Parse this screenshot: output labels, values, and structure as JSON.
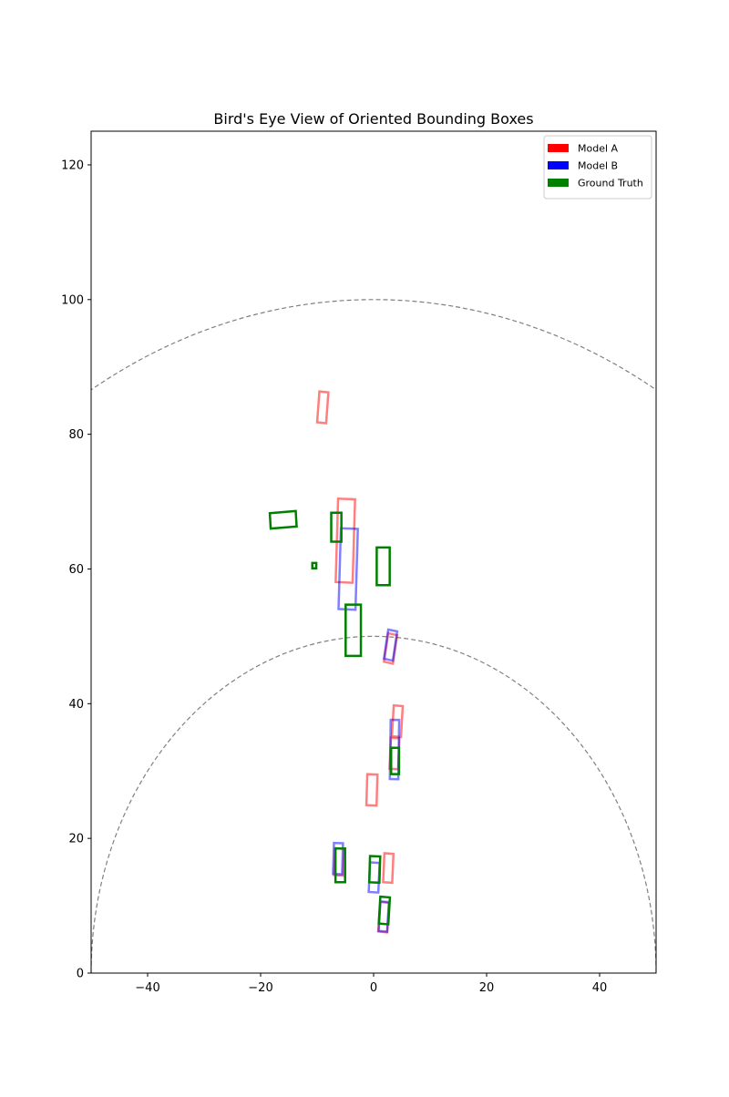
{
  "chart_data": {
    "type": "scatter",
    "title": "Bird's Eye View of Oriented Bounding Boxes",
    "xlabel": "",
    "ylabel": "",
    "xlim": [
      -50,
      50
    ],
    "ylim": [
      0,
      125
    ],
    "x_ticks": [
      -40,
      -20,
      0,
      20,
      40
    ],
    "y_ticks": [
      0,
      20,
      40,
      60,
      80,
      100,
      120
    ],
    "grid": false,
    "legend_position": "upper right",
    "range_rings": [
      {
        "radius": 50,
        "style": "dashed",
        "color": "#808080"
      },
      {
        "radius": 100,
        "style": "dashed",
        "color": "#808080"
      }
    ],
    "series": [
      {
        "name": "Model A",
        "color": "#ff0000",
        "alpha": 0.5,
        "boxes": [
          {
            "cx": -9.0,
            "cy": 84.0,
            "w": 1.6,
            "l": 4.6,
            "heading_deg": 5
          },
          {
            "cx": -5.0,
            "cy": 64.2,
            "w": 3.0,
            "l": 12.4,
            "heading_deg": 2
          },
          {
            "cx": 3.0,
            "cy": 48.2,
            "w": 1.6,
            "l": 4.3,
            "heading_deg": 10
          },
          {
            "cx": 4.2,
            "cy": 37.4,
            "w": 1.6,
            "l": 4.6,
            "heading_deg": 4
          },
          {
            "cx": 3.7,
            "cy": 32.6,
            "w": 1.5,
            "l": 4.6,
            "heading_deg": 3
          },
          {
            "cx": -0.3,
            "cy": 27.2,
            "w": 1.8,
            "l": 4.6,
            "heading_deg": 2
          },
          {
            "cx": 2.6,
            "cy": 15.6,
            "w": 1.6,
            "l": 4.3,
            "heading_deg": 3
          },
          {
            "cx": -6.1,
            "cy": 16.5,
            "w": 1.6,
            "l": 4.0,
            "heading_deg": 3
          },
          {
            "cx": 1.8,
            "cy": 8.3,
            "w": 1.6,
            "l": 4.4,
            "heading_deg": 5
          }
        ]
      },
      {
        "name": "Model B",
        "color": "#0000ff",
        "alpha": 0.5,
        "boxes": [
          {
            "cx": -4.5,
            "cy": 60.0,
            "w": 3.0,
            "l": 12.0,
            "heading_deg": 2
          },
          {
            "cx": 3.0,
            "cy": 48.7,
            "w": 1.6,
            "l": 4.4,
            "heading_deg": 10
          },
          {
            "cx": 3.7,
            "cy": 33.2,
            "w": 1.5,
            "l": 8.8,
            "heading_deg": 1
          },
          {
            "cx": -6.3,
            "cy": 17.0,
            "w": 1.6,
            "l": 4.6,
            "heading_deg": 2
          },
          {
            "cx": 0.1,
            "cy": 14.2,
            "w": 1.7,
            "l": 4.4,
            "heading_deg": 3
          },
          {
            "cx": 1.8,
            "cy": 8.4,
            "w": 1.5,
            "l": 4.4,
            "heading_deg": 4
          }
        ]
      },
      {
        "name": "Ground Truth",
        "color": "#008000",
        "alpha": 1.0,
        "boxes": [
          {
            "cx": -16.0,
            "cy": 67.3,
            "w": 2.3,
            "l": 4.6,
            "heading_deg": 86
          },
          {
            "cx": -6.6,
            "cy": 66.2,
            "w": 1.8,
            "l": 4.3,
            "heading_deg": 0
          },
          {
            "cx": -10.5,
            "cy": 60.5,
            "w": 0.7,
            "l": 0.8,
            "heading_deg": 0
          },
          {
            "cx": 1.7,
            "cy": 60.4,
            "w": 2.3,
            "l": 5.6,
            "heading_deg": 0
          },
          {
            "cx": -3.6,
            "cy": 50.9,
            "w": 2.7,
            "l": 7.6,
            "heading_deg": 0
          },
          {
            "cx": 3.8,
            "cy": 31.5,
            "w": 1.4,
            "l": 3.9,
            "heading_deg": 0
          },
          {
            "cx": -5.9,
            "cy": 16.0,
            "w": 1.7,
            "l": 5.0,
            "heading_deg": 0
          },
          {
            "cx": 0.2,
            "cy": 15.4,
            "w": 1.8,
            "l": 3.9,
            "heading_deg": 2
          },
          {
            "cx": 1.9,
            "cy": 9.3,
            "w": 1.7,
            "l": 4.0,
            "heading_deg": 4
          }
        ]
      }
    ]
  }
}
